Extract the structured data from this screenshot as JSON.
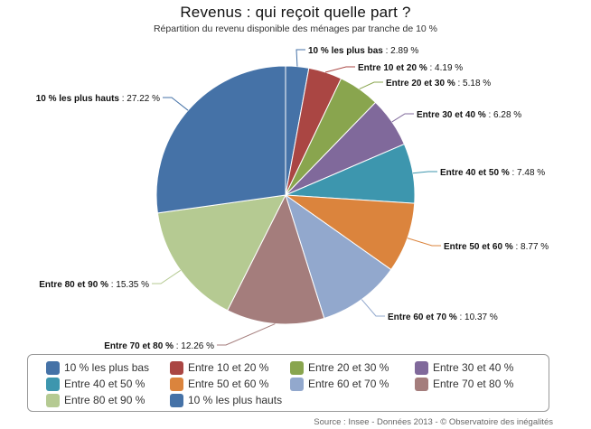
{
  "chart_data": {
    "type": "pie",
    "title": "Revenus : qui reçoit quelle part ?",
    "subtitle": "Répartition du revenu disponible des ménages par tranche de 10 %",
    "slices": [
      {
        "label": "10 % les plus bas",
        "value": 2.89,
        "value_text": "2.89 %",
        "color": "#4572a7"
      },
      {
        "label": "Entre 10 et 20 %",
        "value": 4.19,
        "value_text": "4.19 %",
        "color": "#aa4643"
      },
      {
        "label": "Entre 20 et 30 %",
        "value": 5.18,
        "value_text": "5.18 %",
        "color": "#89a54e"
      },
      {
        "label": "Entre 30 et 40 %",
        "value": 6.28,
        "value_text": "6.28 %",
        "color": "#80699b"
      },
      {
        "label": "Entre 40 et 50 %",
        "value": 7.48,
        "value_text": "7.48 %",
        "color": "#3d96ae"
      },
      {
        "label": "Entre 50 et 60 %",
        "value": 8.77,
        "value_text": "8.77 %",
        "color": "#db843d"
      },
      {
        "label": "Entre 60 et 70 %",
        "value": 10.37,
        "value_text": "10.37 %",
        "color": "#92a8cd"
      },
      {
        "label": "Entre 70 et 80 %",
        "value": 12.26,
        "value_text": "12.26 %",
        "color": "#a47d7c"
      },
      {
        "label": "Entre 80 et 90 %",
        "value": 15.35,
        "value_text": "15.35 %",
        "color": "#b5ca92"
      },
      {
        "label": "10 % les plus hauts",
        "value": 27.22,
        "value_text": "27.22 %",
        "color": "#4572a7"
      }
    ],
    "legend_placement": "bottom"
  },
  "source": "Source : Insee - Données 2013 - © Observatoire des inégalités"
}
